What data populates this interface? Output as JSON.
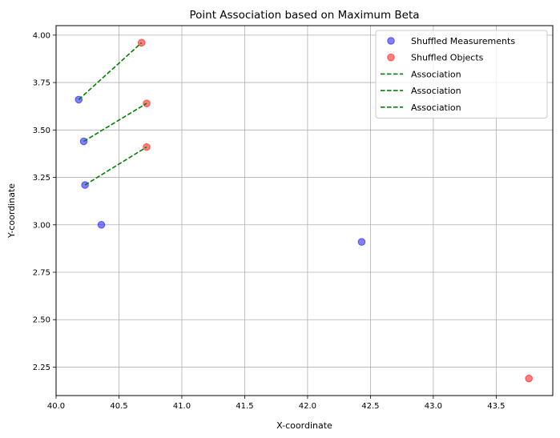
{
  "chart_data": {
    "type": "scatter",
    "title": "Point Association based on Maximum Beta",
    "xlabel": "X-coordinate",
    "ylabel": "Y-coordinate",
    "xlim": [
      40.0,
      43.95
    ],
    "ylim": [
      2.1,
      4.05
    ],
    "grid": true,
    "legend_position": "top-right",
    "x_ticks": [
      "40.0",
      "40.5",
      "41.0",
      "41.5",
      "42.0",
      "42.5",
      "43.0",
      "43.5"
    ],
    "y_ticks": [
      "2.25",
      "2.50",
      "2.75",
      "3.00",
      "3.25",
      "3.50",
      "3.75",
      "4.00"
    ],
    "series": [
      {
        "name": "Shuffled Measurements",
        "kind": "scatter",
        "color": "#0000ff",
        "points": [
          {
            "x": 40.18,
            "y": 3.66
          },
          {
            "x": 40.22,
            "y": 3.44
          },
          {
            "x": 40.23,
            "y": 3.21
          },
          {
            "x": 40.36,
            "y": 3.0
          },
          {
            "x": 42.43,
            "y": 2.91
          }
        ]
      },
      {
        "name": "Shuffled Objects",
        "kind": "scatter",
        "color": "#ff0000",
        "points": [
          {
            "x": 40.68,
            "y": 3.96
          },
          {
            "x": 40.72,
            "y": 3.64
          },
          {
            "x": 40.72,
            "y": 3.41
          },
          {
            "x": 43.76,
            "y": 2.19
          }
        ]
      },
      {
        "name": "Association",
        "kind": "line",
        "style": "dashed",
        "color": "#008000",
        "points": [
          {
            "x": 40.18,
            "y": 3.66
          },
          {
            "x": 40.68,
            "y": 3.96
          }
        ]
      },
      {
        "name": "Association",
        "kind": "line",
        "style": "dashed",
        "color": "#008000",
        "points": [
          {
            "x": 40.22,
            "y": 3.44
          },
          {
            "x": 40.72,
            "y": 3.64
          }
        ]
      },
      {
        "name": "Association",
        "kind": "line",
        "style": "dashed",
        "color": "#008000",
        "points": [
          {
            "x": 40.23,
            "y": 3.21
          },
          {
            "x": 40.72,
            "y": 3.41
          }
        ]
      }
    ]
  }
}
